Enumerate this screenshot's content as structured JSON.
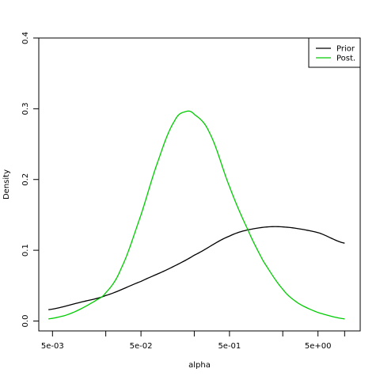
{
  "chart_data": {
    "type": "line",
    "title": "",
    "xlabel": "alpha",
    "ylabel": "Density",
    "x_scale": "log10",
    "xlim": [
      0.0035,
      15
    ],
    "ylim": [
      -0.014,
      0.4
    ],
    "x_ticks_major": [
      {
        "value": 0.005,
        "label": "5e-03"
      },
      {
        "value": 0.05,
        "label": "5e-02"
      },
      {
        "value": 0.5,
        "label": "5e-01"
      },
      {
        "value": 5,
        "label": "5e+00"
      }
    ],
    "x_ticks_minor": [
      0.02,
      0.2,
      2,
      10
    ],
    "y_ticks": [
      {
        "value": 0.0,
        "label": "0.0"
      },
      {
        "value": 0.1,
        "label": "0.1"
      },
      {
        "value": 0.2,
        "label": "0.2"
      },
      {
        "value": 0.3,
        "label": "0.3"
      },
      {
        "value": 0.4,
        "label": "0.4"
      }
    ],
    "grid": false,
    "legend": {
      "position": "top-right"
    },
    "series": [
      {
        "name": "Prior",
        "color": "#000000",
        "x": [
          0.0045,
          0.01,
          0.02,
          0.05,
          0.1,
          0.2,
          0.5,
          1,
          2,
          5,
          10
        ],
        "y": [
          0.016,
          0.026,
          0.036,
          0.056,
          0.073,
          0.093,
          0.12,
          0.131,
          0.133,
          0.125,
          0.11
        ]
      },
      {
        "name": "Post.",
        "color": "#00cc00",
        "x": [
          0.0045,
          0.007,
          0.01,
          0.015,
          0.02,
          0.03,
          0.05,
          0.08,
          0.12,
          0.16,
          0.2,
          0.3,
          0.5,
          0.8,
          1.2,
          2,
          3,
          5,
          10
        ],
        "y": [
          0.003,
          0.008,
          0.016,
          0.028,
          0.04,
          0.075,
          0.15,
          0.23,
          0.283,
          0.296,
          0.292,
          0.265,
          0.19,
          0.13,
          0.085,
          0.045,
          0.025,
          0.012,
          0.003
        ]
      }
    ]
  }
}
